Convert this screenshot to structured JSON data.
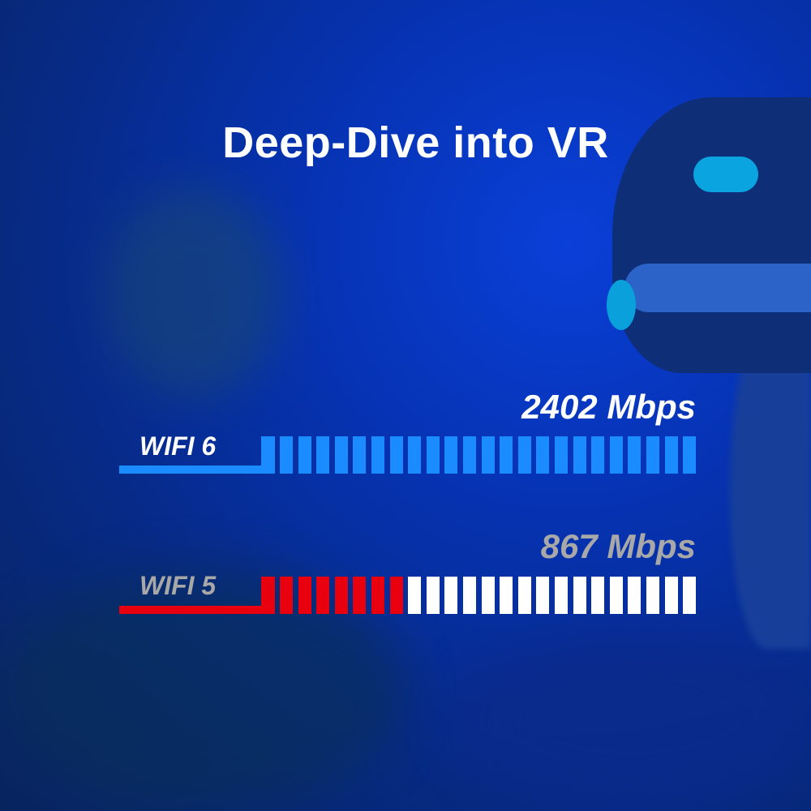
{
  "title": "Deep-Dive into VR",
  "colors": {
    "wifi6": "#1a8cff",
    "wifi5": "#e8000f",
    "unfilled": "#ffffff",
    "wifi6_text": "#ffffff",
    "wifi5_text": "#a8a8a8"
  },
  "chart_data": {
    "type": "bar",
    "orientation": "horizontal",
    "segments_total": 23,
    "series": [
      {
        "name": "WIFI 6",
        "value": 2402,
        "value_label": "2402 Mbps",
        "segments_filled": 23
      },
      {
        "name": "WIFI 5",
        "value": 867,
        "value_label": "867 Mbps",
        "segments_filled": 7
      }
    ]
  }
}
